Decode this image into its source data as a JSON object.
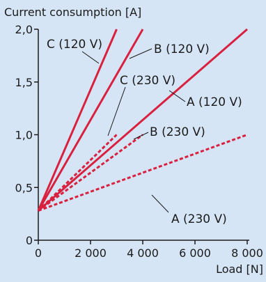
{
  "chart_data": {
    "type": "line",
    "ylabel": "Current consumption [A]",
    "xlabel": "Load [N]",
    "xlim": [
      0,
      8000
    ],
    "ylim": [
      0,
      2.0
    ],
    "x_ticks": [
      {
        "value": 0,
        "label": "0"
      },
      {
        "value": 2000,
        "label": "2 000"
      },
      {
        "value": 4000,
        "label": "4 000"
      },
      {
        "value": 6000,
        "label": "6 000"
      },
      {
        "value": 8000,
        "label": "8 000"
      }
    ],
    "y_ticks": [
      {
        "value": 0,
        "label": "0"
      },
      {
        "value": 0.5,
        "label": "0,5"
      },
      {
        "value": 1.0,
        "label": "1,0"
      },
      {
        "value": 1.5,
        "label": "1,5"
      },
      {
        "value": 2.0,
        "label": "2,0"
      }
    ],
    "grid": false,
    "series": [
      {
        "name": "C (120 V)",
        "style": "solid",
        "color": "#d8213f",
        "points": [
          [
            0,
            0.28
          ],
          [
            3000,
            2.0
          ]
        ]
      },
      {
        "name": "B (120 V)",
        "style": "solid",
        "color": "#d8213f",
        "points": [
          [
            0,
            0.28
          ],
          [
            4000,
            2.0
          ]
        ]
      },
      {
        "name": "A (120 V)",
        "style": "solid",
        "color": "#d8213f",
        "points": [
          [
            0,
            0.28
          ],
          [
            8000,
            2.0
          ]
        ]
      },
      {
        "name": "C (230 V)",
        "style": "dotted",
        "color": "#d8213f",
        "points": [
          [
            0,
            0.28
          ],
          [
            3000,
            1.0
          ]
        ]
      },
      {
        "name": "B (230 V)",
        "style": "dotted",
        "color": "#d8213f",
        "points": [
          [
            0,
            0.28
          ],
          [
            4000,
            1.0
          ]
        ]
      },
      {
        "name": "A (230 V)",
        "style": "dotted",
        "color": "#d8213f",
        "points": [
          [
            0,
            0.28
          ],
          [
            8000,
            1.0
          ]
        ]
      }
    ]
  },
  "colors": {
    "background": "#d6e5f5",
    "axis": "#1a1a1a",
    "series": "#d8213f"
  }
}
